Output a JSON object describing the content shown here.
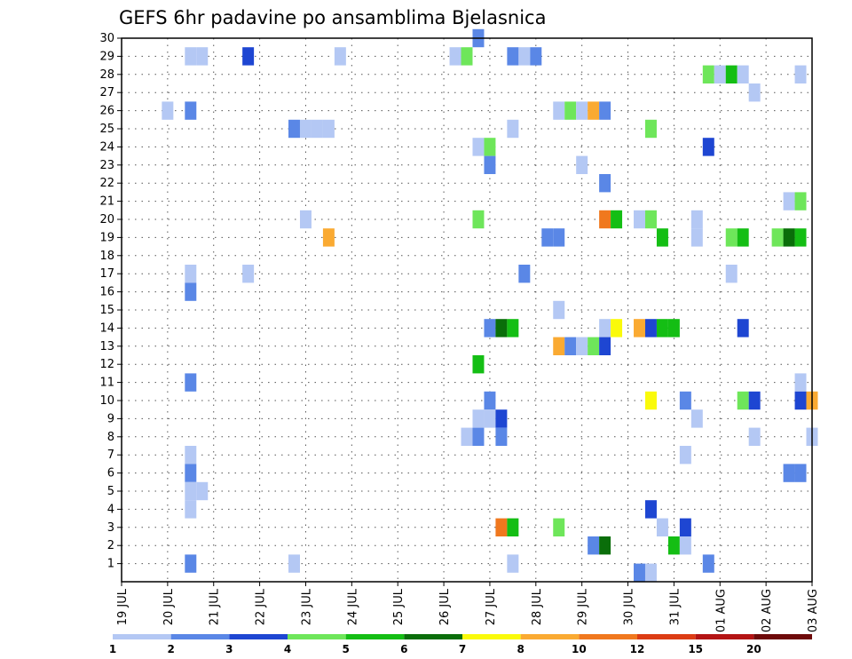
{
  "chart_data": {
    "type": "heatmap",
    "title": "GEFS 6hr padavine po ansamblima Bjelasnica",
    "xlabel": "",
    "ylabel": "",
    "x_tick_labels": [
      "19 JUL",
      "20 JUL",
      "21 JUL",
      "22 JUL",
      "23 JUL",
      "24 JUL",
      "25 JUL",
      "26 JUL",
      "27 JUL",
      "28 JUL",
      "29 JUL",
      "30 JUL",
      "31 JUL",
      "01 AUG",
      "02 AUG",
      "03 AUG"
    ],
    "y_tick_labels": [
      "1",
      "2",
      "3",
      "4",
      "5",
      "6",
      "7",
      "8",
      "9",
      "10",
      "11",
      "12",
      "13",
      "14",
      "15",
      "16",
      "17",
      "18",
      "19",
      "20",
      "21",
      "22",
      "23",
      "24",
      "25",
      "26",
      "27",
      "28",
      "29",
      "30"
    ],
    "x_unit": "day index from 19 JUL (6-hour steps)",
    "xlim": [
      0,
      15
    ],
    "ylim": [
      0,
      30
    ],
    "grid": true,
    "legend": {
      "placement": "bottom",
      "labels": [
        "1",
        "2",
        "3",
        "4",
        "5",
        "6",
        "7",
        "8",
        "10",
        "12",
        "15",
        "20"
      ],
      "colors": [
        "#b4c8f4",
        "#5a87e6",
        "#1e46d2",
        "#6ee65a",
        "#14be14",
        "#0a6e0a",
        "#fafa0a",
        "#faaa32",
        "#f0781e",
        "#dc3c14",
        "#b41414",
        "#6e0a0a"
      ]
    },
    "cells": [
      {
        "x": 1.5,
        "m": 29,
        "c": 1
      },
      {
        "x": 1.75,
        "m": 29,
        "c": 1
      },
      {
        "x": 2.75,
        "m": 29,
        "c": 3
      },
      {
        "x": 4.75,
        "m": 29,
        "c": 1
      },
      {
        "x": 7.25,
        "m": 29,
        "c": 1
      },
      {
        "x": 7.5,
        "m": 29,
        "c": 4
      },
      {
        "x": 7.75,
        "m": 30,
        "c": 2
      },
      {
        "x": 8.5,
        "m": 29,
        "c": 2
      },
      {
        "x": 8.75,
        "m": 29,
        "c": 1
      },
      {
        "x": 9.0,
        "m": 29,
        "c": 2
      },
      {
        "x": 12.75,
        "m": 28,
        "c": 4
      },
      {
        "x": 13.0,
        "m": 28,
        "c": 1
      },
      {
        "x": 13.25,
        "m": 28,
        "c": 5
      },
      {
        "x": 13.5,
        "m": 28,
        "c": 1
      },
      {
        "x": 14.75,
        "m": 28,
        "c": 1
      },
      {
        "x": 13.75,
        "m": 27,
        "c": 1
      },
      {
        "x": 1.0,
        "m": 26,
        "c": 1
      },
      {
        "x": 1.5,
        "m": 26,
        "c": 2
      },
      {
        "x": 9.5,
        "m": 26,
        "c": 1
      },
      {
        "x": 9.75,
        "m": 26,
        "c": 4
      },
      {
        "x": 10.0,
        "m": 26,
        "c": 1
      },
      {
        "x": 10.25,
        "m": 26,
        "c": 8
      },
      {
        "x": 10.5,
        "m": 26,
        "c": 2
      },
      {
        "x": 3.75,
        "m": 25,
        "c": 2
      },
      {
        "x": 4.0,
        "m": 25,
        "c": 1
      },
      {
        "x": 4.25,
        "m": 25,
        "c": 1
      },
      {
        "x": 4.5,
        "m": 25,
        "c": 1
      },
      {
        "x": 8.5,
        "m": 25,
        "c": 1
      },
      {
        "x": 11.5,
        "m": 25,
        "c": 4
      },
      {
        "x": 7.75,
        "m": 24,
        "c": 1
      },
      {
        "x": 8.0,
        "m": 24,
        "c": 4
      },
      {
        "x": 12.75,
        "m": 24,
        "c": 3
      },
      {
        "x": 8.0,
        "m": 23,
        "c": 2
      },
      {
        "x": 10.0,
        "m": 23,
        "c": 1
      },
      {
        "x": 10.5,
        "m": 22,
        "c": 2
      },
      {
        "x": 14.5,
        "m": 21,
        "c": 1
      },
      {
        "x": 14.75,
        "m": 21,
        "c": 4
      },
      {
        "x": 4.0,
        "m": 20,
        "c": 1
      },
      {
        "x": 7.75,
        "m": 20,
        "c": 4
      },
      {
        "x": 10.5,
        "m": 20,
        "c": 9
      },
      {
        "x": 10.75,
        "m": 20,
        "c": 5
      },
      {
        "x": 11.25,
        "m": 20,
        "c": 1
      },
      {
        "x": 11.5,
        "m": 20,
        "c": 4
      },
      {
        "x": 12.5,
        "m": 20,
        "c": 1
      },
      {
        "x": 4.5,
        "m": 19,
        "c": 8
      },
      {
        "x": 9.25,
        "m": 19,
        "c": 2
      },
      {
        "x": 9.5,
        "m": 19,
        "c": 2
      },
      {
        "x": 11.75,
        "m": 19,
        "c": 5
      },
      {
        "x": 12.5,
        "m": 19,
        "c": 1
      },
      {
        "x": 13.25,
        "m": 19,
        "c": 4
      },
      {
        "x": 13.5,
        "m": 19,
        "c": 5
      },
      {
        "x": 14.25,
        "m": 19,
        "c": 4
      },
      {
        "x": 14.5,
        "m": 19,
        "c": 6
      },
      {
        "x": 14.75,
        "m": 19,
        "c": 5
      },
      {
        "x": 1.5,
        "m": 17,
        "c": 1
      },
      {
        "x": 2.75,
        "m": 17,
        "c": 1
      },
      {
        "x": 8.75,
        "m": 17,
        "c": 2
      },
      {
        "x": 13.25,
        "m": 17,
        "c": 1
      },
      {
        "x": 1.5,
        "m": 16,
        "c": 2
      },
      {
        "x": 9.5,
        "m": 15,
        "c": 1
      },
      {
        "x": 8.0,
        "m": 14,
        "c": 2
      },
      {
        "x": 8.25,
        "m": 14,
        "c": 6
      },
      {
        "x": 8.5,
        "m": 14,
        "c": 5
      },
      {
        "x": 10.5,
        "m": 14,
        "c": 1
      },
      {
        "x": 10.75,
        "m": 14,
        "c": 7
      },
      {
        "x": 11.25,
        "m": 14,
        "c": 8
      },
      {
        "x": 11.5,
        "m": 14,
        "c": 3
      },
      {
        "x": 11.75,
        "m": 14,
        "c": 5
      },
      {
        "x": 12.0,
        "m": 14,
        "c": 5
      },
      {
        "x": 13.5,
        "m": 14,
        "c": 3
      },
      {
        "x": 7.75,
        "m": 12,
        "c": 5
      },
      {
        "x": 9.5,
        "m": 13,
        "c": 8
      },
      {
        "x": 9.75,
        "m": 13,
        "c": 2
      },
      {
        "x": 10.0,
        "m": 13,
        "c": 1
      },
      {
        "x": 10.25,
        "m": 13,
        "c": 4
      },
      {
        "x": 10.5,
        "m": 13,
        "c": 3
      },
      {
        "x": 1.5,
        "m": 11,
        "c": 2
      },
      {
        "x": 14.75,
        "m": 11,
        "c": 1
      },
      {
        "x": 8.0,
        "m": 10,
        "c": 2
      },
      {
        "x": 11.5,
        "m": 10,
        "c": 7
      },
      {
        "x": 12.25,
        "m": 10,
        "c": 2
      },
      {
        "x": 13.5,
        "m": 10,
        "c": 4
      },
      {
        "x": 13.75,
        "m": 10,
        "c": 3
      },
      {
        "x": 14.75,
        "m": 10,
        "c": 3
      },
      {
        "x": 15.0,
        "m": 10,
        "c": 8
      },
      {
        "x": 7.75,
        "m": 9,
        "c": 1
      },
      {
        "x": 8.0,
        "m": 9,
        "c": 1
      },
      {
        "x": 8.25,
        "m": 9,
        "c": 3
      },
      {
        "x": 12.5,
        "m": 9,
        "c": 1
      },
      {
        "x": 7.5,
        "m": 8,
        "c": 1
      },
      {
        "x": 7.75,
        "m": 8,
        "c": 2
      },
      {
        "x": 8.25,
        "m": 8,
        "c": 2
      },
      {
        "x": 13.75,
        "m": 8,
        "c": 1
      },
      {
        "x": 15.0,
        "m": 8,
        "c": 1
      },
      {
        "x": 1.5,
        "m": 7,
        "c": 1
      },
      {
        "x": 12.25,
        "m": 7,
        "c": 1
      },
      {
        "x": 1.5,
        "m": 6,
        "c": 2
      },
      {
        "x": 14.5,
        "m": 6,
        "c": 2
      },
      {
        "x": 14.75,
        "m": 6,
        "c": 2
      },
      {
        "x": 1.5,
        "m": 5,
        "c": 1
      },
      {
        "x": 1.75,
        "m": 5,
        "c": 1
      },
      {
        "x": 1.5,
        "m": 4,
        "c": 1
      },
      {
        "x": 11.5,
        "m": 4,
        "c": 3
      },
      {
        "x": 8.25,
        "m": 3,
        "c": 9
      },
      {
        "x": 8.5,
        "m": 3,
        "c": 5
      },
      {
        "x": 9.5,
        "m": 3,
        "c": 4
      },
      {
        "x": 11.75,
        "m": 3,
        "c": 1
      },
      {
        "x": 12.25,
        "m": 3,
        "c": 3
      },
      {
        "x": 10.25,
        "m": 2,
        "c": 2
      },
      {
        "x": 10.5,
        "m": 2,
        "c": 6
      },
      {
        "x": 12.0,
        "m": 2,
        "c": 5
      },
      {
        "x": 12.25,
        "m": 2,
        "c": 1
      },
      {
        "x": 1.5,
        "m": 1,
        "c": 2
      },
      {
        "x": 3.75,
        "m": 1,
        "c": 1
      },
      {
        "x": 8.5,
        "m": 1,
        "c": 1
      },
      {
        "x": 12.75,
        "m": 1,
        "c": 2
      },
      {
        "x": 11.25,
        "m": 0.5,
        "c": 2
      },
      {
        "x": 11.5,
        "m": 0.5,
        "c": 1
      }
    ]
  }
}
